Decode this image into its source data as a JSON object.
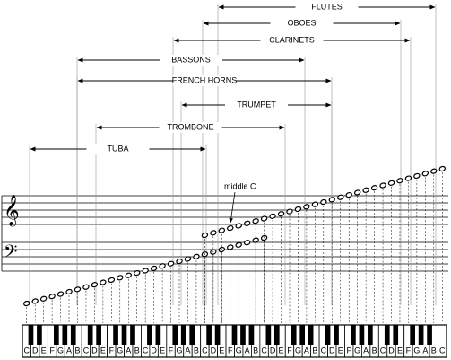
{
  "ranges": [
    {
      "label": "FLUTES"
    },
    {
      "label": "OBOES"
    },
    {
      "label": "CLARINETS"
    },
    {
      "label": "BASSONS"
    },
    {
      "label": "FRENCH HORNS"
    },
    {
      "label": "TRUMPET"
    },
    {
      "label": "TROMBONE"
    },
    {
      "label": "TUBA"
    }
  ],
  "middle_c": "middle C",
  "keys": [
    "C",
    "D",
    "E",
    "F",
    "G",
    "A",
    "B",
    "C",
    "D",
    "E",
    "F",
    "G",
    "A",
    "B",
    "C",
    "D",
    "E",
    "F",
    "G",
    "A",
    "B",
    "C",
    "D",
    "E",
    "F",
    "G",
    "A",
    "B",
    "C",
    "D",
    "E",
    "F",
    "G",
    "A",
    "B",
    "C",
    "D",
    "E",
    "F",
    "G",
    "A",
    "B",
    "C",
    "D",
    "E",
    "F",
    "G",
    "A",
    "B",
    "C"
  ]
}
